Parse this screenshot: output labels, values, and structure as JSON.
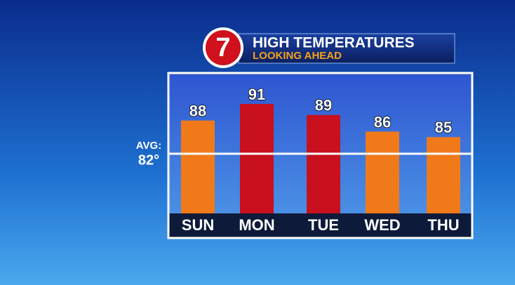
{
  "chart_data": {
    "type": "bar",
    "logo": "7",
    "title": "HIGH TEMPERATURES",
    "subtitle": "LOOKING AHEAD",
    "categories": [
      "SUN",
      "MON",
      "TUE",
      "WED",
      "THU"
    ],
    "values": [
      88,
      91,
      89,
      86,
      85
    ],
    "colors": [
      "#f07a1a",
      "#c8101e",
      "#c8101e",
      "#f07a1a",
      "#f07a1a"
    ],
    "average": {
      "name": "AVG:",
      "value": 82,
      "value_label": "82°"
    }
  }
}
